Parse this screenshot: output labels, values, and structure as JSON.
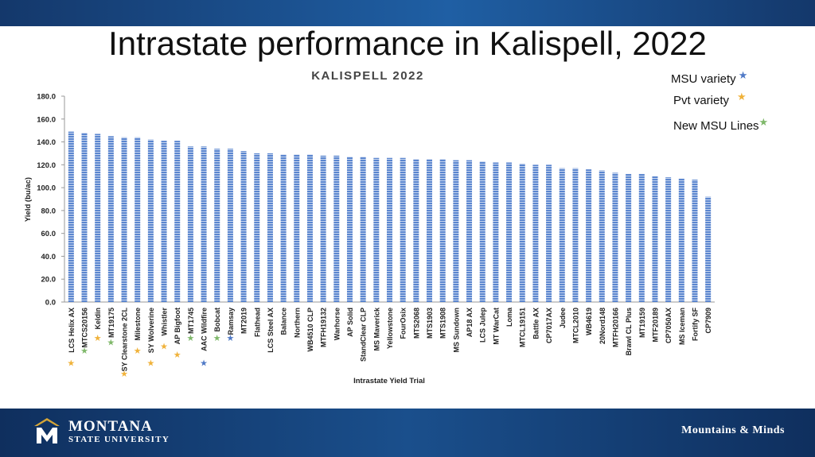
{
  "slide": {
    "title": "Intrastate performance in Kalispell, 2022"
  },
  "legend": [
    {
      "label": "MSU variety",
      "star_color": "#4f79c6"
    },
    {
      "label": "Pvt variety",
      "star_color": "#f0b23a"
    },
    {
      "label": "New MSU Lines",
      "star_color": "#7fb86a"
    }
  ],
  "chart_data": {
    "type": "bar",
    "title": "KALISPELL 2022",
    "xlabel": "Intrastate Yield Trial",
    "ylabel": "Yield (bu/ac)",
    "ylim": [
      0,
      180
    ],
    "yticks": [
      "0.0",
      "20.0",
      "40.0",
      "60.0",
      "80.0",
      "100.0",
      "120.0",
      "140.0",
      "160.0",
      "180.0"
    ],
    "bar_color": "#4472c4",
    "grid": false,
    "categories": [
      "LCS Helix AX",
      "MTCS20156",
      "Keldin",
      "MT19175",
      "SY Clearstone 2CL",
      "Milestone",
      "SY Wolverine",
      "Whistler",
      "AP Bigfoot",
      "MT1745",
      "AAC Wildfire",
      "Bobcat",
      "Ramsay",
      "MT2019",
      "Flathead",
      "LCS Steel AX",
      "Balance",
      "Northern",
      "WB4510 CLP",
      "MTFH19132",
      "Warhorse",
      "AP Solid",
      "StandClear CLP",
      "MS Maverick",
      "Yellowstone",
      "FourOsix",
      "MTS2068",
      "MTS1903",
      "MTS1908",
      "MS Sundown",
      "AP18 AX",
      "LCS Julep",
      "MT WarCat",
      "Loma",
      "MTCL19151",
      "Battle AX",
      "CP7017AX",
      "Judee",
      "MTCL2010",
      "WB4619",
      "20Nord148",
      "MTFH20166",
      "Brawl CL Plus",
      "MT19159",
      "MTF20189",
      "CP7050AX",
      "MS Iceman",
      "Fortify SF",
      "CP7909"
    ],
    "values": [
      149,
      148,
      147,
      145,
      144,
      144,
      142,
      141,
      141,
      136,
      136,
      134,
      134,
      132,
      130,
      130,
      129,
      129,
      129,
      128,
      128,
      127,
      127,
      126,
      126,
      126,
      125,
      125,
      125,
      124,
      124,
      123,
      122,
      122,
      121,
      120,
      120,
      117,
      117,
      116,
      115,
      113,
      112,
      112,
      110,
      109,
      108,
      107,
      92
    ],
    "markers": [
      {
        "category": "LCS Helix AX",
        "type": "Pvt variety"
      },
      {
        "category": "MTCS20156",
        "type": "New MSU Lines"
      },
      {
        "category": "Keldin",
        "type": "Pvt variety"
      },
      {
        "category": "MT19175",
        "type": "New MSU Lines"
      },
      {
        "category": "SY Clearstone 2CL",
        "type": "Pvt variety"
      },
      {
        "category": "Milestone",
        "type": "Pvt variety"
      },
      {
        "category": "SY Wolverine",
        "type": "Pvt variety"
      },
      {
        "category": "Whistler",
        "type": "Pvt variety"
      },
      {
        "category": "AP Bigfoot",
        "type": "Pvt variety"
      },
      {
        "category": "MT1745",
        "type": "New MSU Lines"
      },
      {
        "category": "AAC Wildfire",
        "type": "MSU variety"
      },
      {
        "category": "Bobcat",
        "type": "New MSU Lines"
      },
      {
        "category": "Ramsay",
        "type": "MSU variety"
      }
    ]
  },
  "footer": {
    "logo_line1": "MONTANA",
    "logo_line2": "STATE UNIVERSITY",
    "tagline": "Mountains & Minds"
  }
}
